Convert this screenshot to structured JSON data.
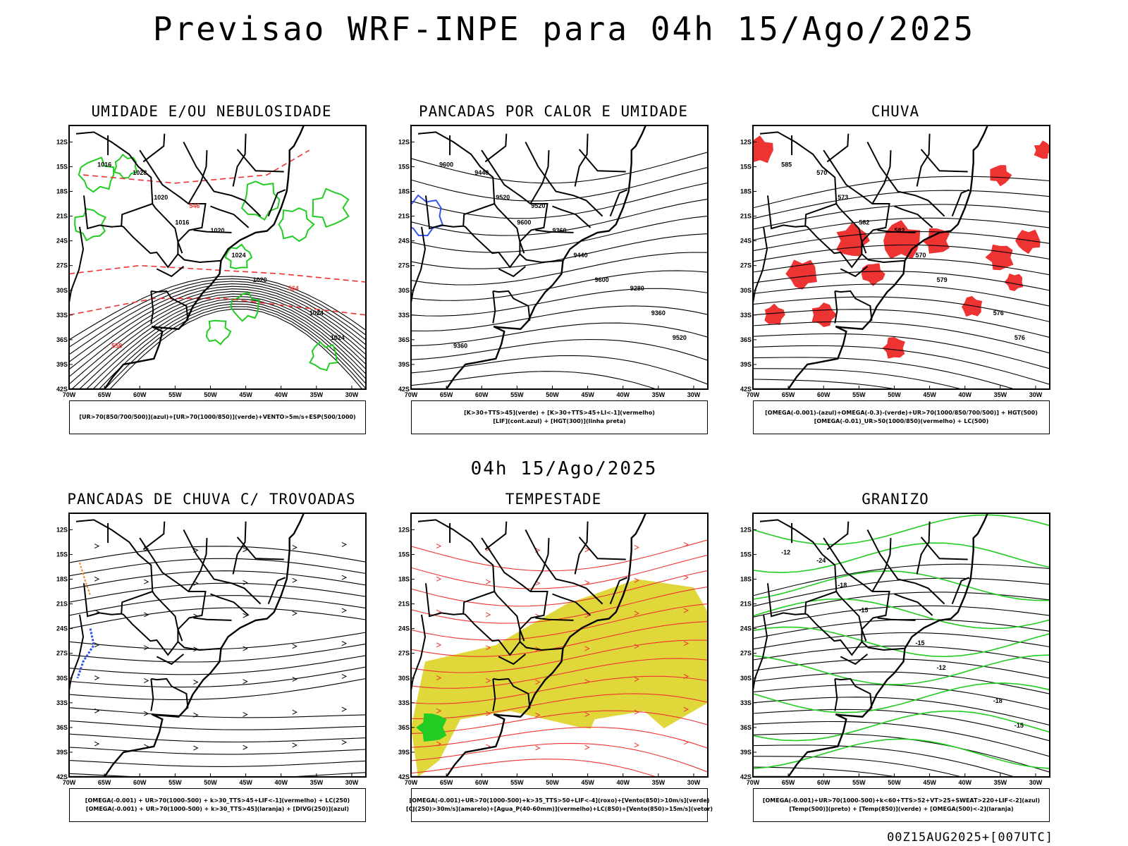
{
  "header": {
    "main_title": "Previsao WRF-INPE  para 04h 15/Ago/2025",
    "row_title": "04h 15/Ago/2025",
    "footer": "00Z15AUG2025+[007UTC]"
  },
  "axes": {
    "lat_labels": [
      "12S",
      "15S",
      "18S",
      "21S",
      "24S",
      "27S",
      "30S",
      "33S",
      "36S",
      "39S",
      "42S"
    ],
    "lon_labels": [
      "70W",
      "65W",
      "60W",
      "55W",
      "50W",
      "45W",
      "40W",
      "35W",
      "30W"
    ]
  },
  "colors": {
    "green": "#22cc22",
    "red": "#ee3333",
    "blue": "#3355ee",
    "yellow": "#e0d83a",
    "orange": "#ee8822",
    "black": "#000000"
  },
  "panels": [
    {
      "title": "UMIDADE E/OU NEBULOSIDADE",
      "legend": [
        "[UR>70(850/700/500)](azul)+[UR>70(1000/850)](verde)+VENTO>5m/s+ESP(500/1000)"
      ],
      "contour_labels": [
        "1016",
        "1016",
        "1020",
        "1024",
        "1020",
        "1024",
        "1024",
        "1028",
        "1020",
        "564",
        "558",
        "546"
      ]
    },
    {
      "title": "PANCADAS POR CALOR E UMIDADE",
      "legend": [
        "[K>30+TTS>45](verde) + [K>30+TTS>45+LI<-1](vermelho)",
        "[LIF](cont.azul) + [HGT(300)](linha preta)"
      ],
      "contour_labels": [
        "9600",
        "9600",
        "9600",
        "9520",
        "9520",
        "9440",
        "9360",
        "9440",
        "9360",
        "9280",
        "9360",
        "9520"
      ]
    },
    {
      "title": "CHUVA",
      "legend": [
        "[OMEGA(-0.001)-(azul)+OMEGA(-0.3)-(verde)+UR>70(1000/850/700/500)] + HGT(500)",
        "[OMEGA(-0.01)_UR>50(1000/850)(vermelho) + LC(500)"
      ],
      "contour_labels": [
        "585",
        "582",
        "579",
        "576",
        "573",
        "570",
        "576",
        "570",
        "582"
      ]
    },
    {
      "title": "PANCADAS DE CHUVA C/ TROVOADAS",
      "legend": [
        "[OMEGA(-0.001) + UR>70(1000-500) + k>30_TTS>45+LIF<-1](vermelho) + LC(250)",
        "[OMEGA(-0.001) + UR>70(1000-500) + k>30_TTS>45](laranja) + [DIVG(250)](azul)"
      ],
      "contour_labels": []
    },
    {
      "title": "TEMPESTADE",
      "legend": [
        "[OMEGA(-0.001)+UR>70(1000-500)+k>35_TTS>50+LIF<-4](roxo)+[Vento(850)>10m/s](verde)",
        "[CJ(250)>30m/s](amarelo)+[Agua_P(40-60mm)](vermelho)+LC(850)+[Vento(850)>15m/s](vetor)"
      ],
      "contour_labels": []
    },
    {
      "title": "GRANIZO",
      "legend": [
        "[OMEGA(-0.001)+UR>70(1000-500)+k<60+TTS>52+VT>25+SWEAT>220+LIF<-2](azul)",
        "[Temp(500)](preto) + [Temp(850)](verde) + [OMEGA(500)<-2](laranja)"
      ],
      "contour_labels": [
        "-12",
        "-15",
        "-12",
        "-15",
        "-18",
        "-15",
        "-18",
        "-24"
      ]
    }
  ]
}
